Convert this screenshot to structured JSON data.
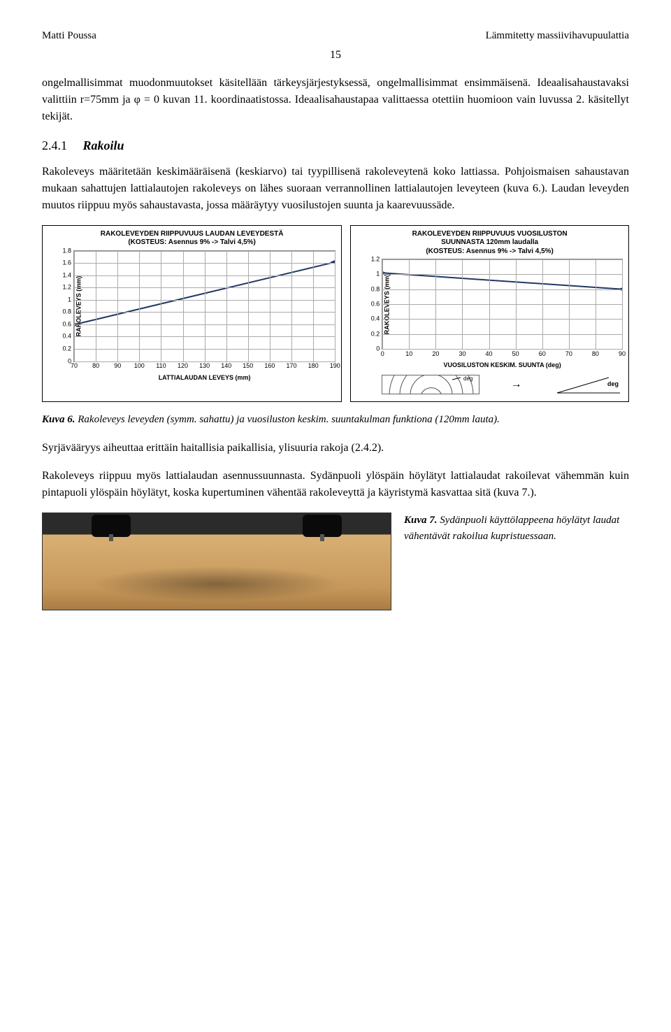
{
  "header": {
    "left": "Matti Poussa",
    "right": "Lämmitetty massiivihavupuulattia"
  },
  "page_number": "15",
  "paragraphs": {
    "p1": "ongelmallisimmat muodonmuutokset käsitellään tärkeysjärjestyksessä, ongelmallisimmat ensimmäisenä. Ideaalisahaustavaksi valittiin r=75mm ja φ = 0  kuvan 11. koordinaatistossa. Ideaalisahaustapaa valittaessa otettiin huomioon vain luvussa 2. käsitellyt tekijät.",
    "section_num": "2.4.1",
    "section_title": "Rakoilu",
    "p2": "Rakoleveys määritetään keskimääräisenä (keskiarvo) tai tyypillisenä rakoleveytenä koko lattiassa. Pohjoismaisen sahaustavan mukaan sahattujen lattialautojen rakoleveys on lähes suoraan verrannollinen lattialautojen leveyteen (kuva 6.). Laudan leveyden muutos riippuu myös sahaustavasta, jossa määräytyy vuosilustojen suunta ja kaarevuussäde.",
    "caption6_lead": "Kuva 6.",
    "caption6": " Rakoleveys leveyden (symm. sahattu) ja vuosiluston keskim. suuntakulman funktiona (120mm lauta).",
    "p3": "Syrjävääryys aiheuttaa erittäin haitallisia paikallisia, ylisuuria rakoja (2.4.2).",
    "p4": "Rakoleveys riippuu myös lattialaudan asennussuunnasta. Sydänpuoli ylöspäin höylätyt lattialaudat rakoilevat vähemmän kuin pintapuoli ylöspäin höylätyt, koska kupertuminen vähentää rakoleveyttä ja käyristymä kasvattaa sitä (kuva 7.).",
    "caption7_lead": "Kuva 7.",
    "caption7": "  Sydänpuoli käyttölappeena höylätyt laudat vähentävät rakoilua kupristuessaan."
  },
  "chart_left": {
    "type": "line",
    "title_l1": "RAKOLEVEYDEN RIIPPUVUUS LAUDAN LEVEYDESTÄ",
    "title_l2": "(KOSTEUS: Asennus 9% -> Talvi 4,5%)",
    "xlabel": "LATTIALAUDAN LEVEYS (mm)",
    "ylabel": "RAKOLEVEYS (mm)",
    "x_ticks": [
      70,
      80,
      90,
      100,
      110,
      120,
      130,
      140,
      150,
      160,
      170,
      180,
      190
    ],
    "y_ticks": [
      0,
      0.2,
      0.4,
      0.6,
      0.8,
      1,
      1.2,
      1.4,
      1.6,
      1.8
    ],
    "xlim": [
      70,
      190
    ],
    "ylim": [
      0,
      1.8
    ],
    "data": [
      [
        70,
        0.6
      ],
      [
        190,
        1.62
      ]
    ],
    "line_color": "#203864",
    "line_width": 2,
    "marker": "diamond",
    "marker_color": "#203864",
    "marker_size": 6,
    "grid_color": "#aaaaaa",
    "background_color": "#ffffff",
    "font_size": 9
  },
  "chart_right": {
    "type": "line",
    "title_l1": "RAKOLEVEYDEN RIIPPUVUUS VUOSILUSTON",
    "title_l2": "SUUNNASTA 120mm laudalla",
    "title_l3": "(KOSTEUS: Asennus 9% -> Talvi 4,5%)",
    "xlabel": "VUOSILUSTON KESKIM. SUUNTA (deg)",
    "ylabel": "RAKOLEVEYS (mm)",
    "x_ticks": [
      0,
      10,
      20,
      30,
      40,
      50,
      60,
      70,
      80,
      90
    ],
    "y_ticks": [
      0,
      0.2,
      0.4,
      0.6,
      0.8,
      1,
      1.2
    ],
    "xlim": [
      0,
      90
    ],
    "ylim": [
      0,
      1.2
    ],
    "data": [
      [
        0,
        1.02
      ],
      [
        90,
        0.8
      ]
    ],
    "line_color": "#203864",
    "line_width": 2,
    "marker": "diamond",
    "marker_color": "#203864",
    "marker_size": 6,
    "grid_color": "#aaaaaa",
    "background_color": "#ffffff",
    "font_size": 9,
    "extras": {
      "deg_label_small": "deg",
      "deg_label_big": "deg",
      "arrow": "→"
    }
  }
}
